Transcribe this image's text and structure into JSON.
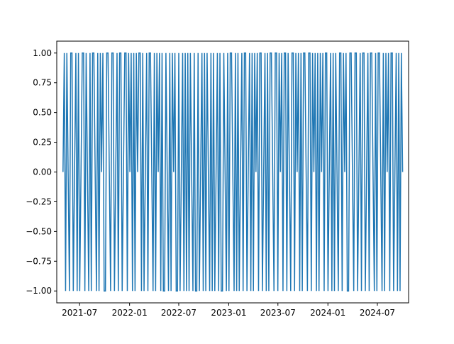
{
  "chart_data": {
    "type": "line",
    "title": "",
    "xlabel": "",
    "ylabel": "",
    "x_range": [
      "2021-04-08",
      "2024-10-24"
    ],
    "ylim": [
      -1.1,
      1.1
    ],
    "x_ticks": [
      {
        "date": "2021-07-01",
        "label": "2021-07"
      },
      {
        "date": "2022-01-01",
        "label": "2022-01"
      },
      {
        "date": "2022-07-01",
        "label": "2022-07"
      },
      {
        "date": "2023-01-01",
        "label": "2023-01"
      },
      {
        "date": "2023-07-01",
        "label": "2023-07"
      },
      {
        "date": "2024-01-01",
        "label": "2024-01"
      },
      {
        "date": "2024-07-01",
        "label": "2024-07"
      }
    ],
    "y_ticks": [
      {
        "value": 1.0,
        "label": "1.00"
      },
      {
        "value": 0.75,
        "label": "0.75"
      },
      {
        "value": 0.5,
        "label": "0.50"
      },
      {
        "value": 0.25,
        "label": "0.25"
      },
      {
        "value": 0.0,
        "label": "0.00"
      },
      {
        "value": -0.25,
        "label": "−0.25"
      },
      {
        "value": -0.5,
        "label": "−0.50"
      },
      {
        "value": -0.75,
        "label": "−0.75"
      },
      {
        "value": -1.0,
        "label": "−1.00"
      }
    ],
    "grid": false,
    "legend": "none",
    "series": [
      {
        "color": "#1f77b4",
        "start_date": "2021-05-01",
        "end_date": "2024-10-02",
        "values": [
          0,
          1,
          -1,
          1,
          0,
          -1,
          1,
          1,
          -1,
          0,
          1,
          -1,
          1,
          -1,
          0,
          1,
          1,
          -1,
          1,
          0,
          -1,
          1,
          -1,
          1,
          1,
          0,
          -1,
          1,
          -1,
          1,
          0,
          1,
          -1,
          -1,
          1,
          1,
          0,
          -1,
          1,
          1,
          -1,
          0,
          1,
          -1,
          1,
          1,
          -1,
          0,
          1,
          1,
          -1,
          1,
          0,
          1,
          -1,
          1,
          -1,
          1,
          0,
          1,
          1,
          -1,
          1,
          -1,
          0,
          1,
          -1,
          1,
          1,
          0,
          -1,
          1,
          -1,
          1,
          0,
          1,
          -1,
          1,
          -1,
          -1,
          1,
          0,
          -1,
          1,
          -1,
          1,
          0,
          1,
          -1,
          -1,
          1,
          -1,
          0,
          1,
          -1,
          1,
          -1,
          1,
          -1,
          1,
          0,
          -1,
          1,
          -1,
          -1,
          1,
          -1,
          0,
          1,
          -1,
          1,
          -1,
          1,
          0,
          -1,
          1,
          -1,
          1,
          -1,
          0,
          1,
          -1,
          1,
          -1,
          -1,
          1,
          0,
          -1,
          1,
          -1,
          1,
          1,
          0,
          -1,
          1,
          -1,
          1,
          -1,
          0,
          1,
          -1,
          1,
          1,
          -1,
          0,
          1,
          -1,
          1,
          -1,
          1,
          0,
          1,
          -1,
          1,
          1,
          -1,
          0,
          1,
          -1,
          1,
          -1,
          1,
          1,
          0,
          -1,
          1,
          1,
          -1,
          1,
          0,
          1,
          -1,
          1,
          1,
          -1,
          1,
          0,
          -1,
          1,
          1,
          -1,
          1,
          0,
          1,
          -1,
          1,
          -1,
          1,
          1,
          0,
          -1,
          1,
          1,
          -1,
          1,
          0,
          1,
          -1,
          1,
          -1,
          1,
          0,
          1,
          -1,
          1,
          1,
          -1,
          0,
          1,
          -1,
          1,
          -1,
          1,
          0,
          -1,
          1,
          1,
          -1,
          1,
          0,
          1,
          -1,
          -1,
          1,
          1,
          0,
          -1,
          1,
          1,
          -1,
          0,
          1,
          -1,
          1,
          1,
          -1,
          0,
          1,
          -1,
          1,
          1,
          0,
          -1,
          1,
          -1,
          1,
          1,
          0,
          -1,
          1,
          -1,
          1,
          0,
          1,
          -1,
          1,
          1,
          -1,
          0,
          1,
          -1,
          1,
          -1,
          1,
          0
        ]
      }
    ]
  }
}
